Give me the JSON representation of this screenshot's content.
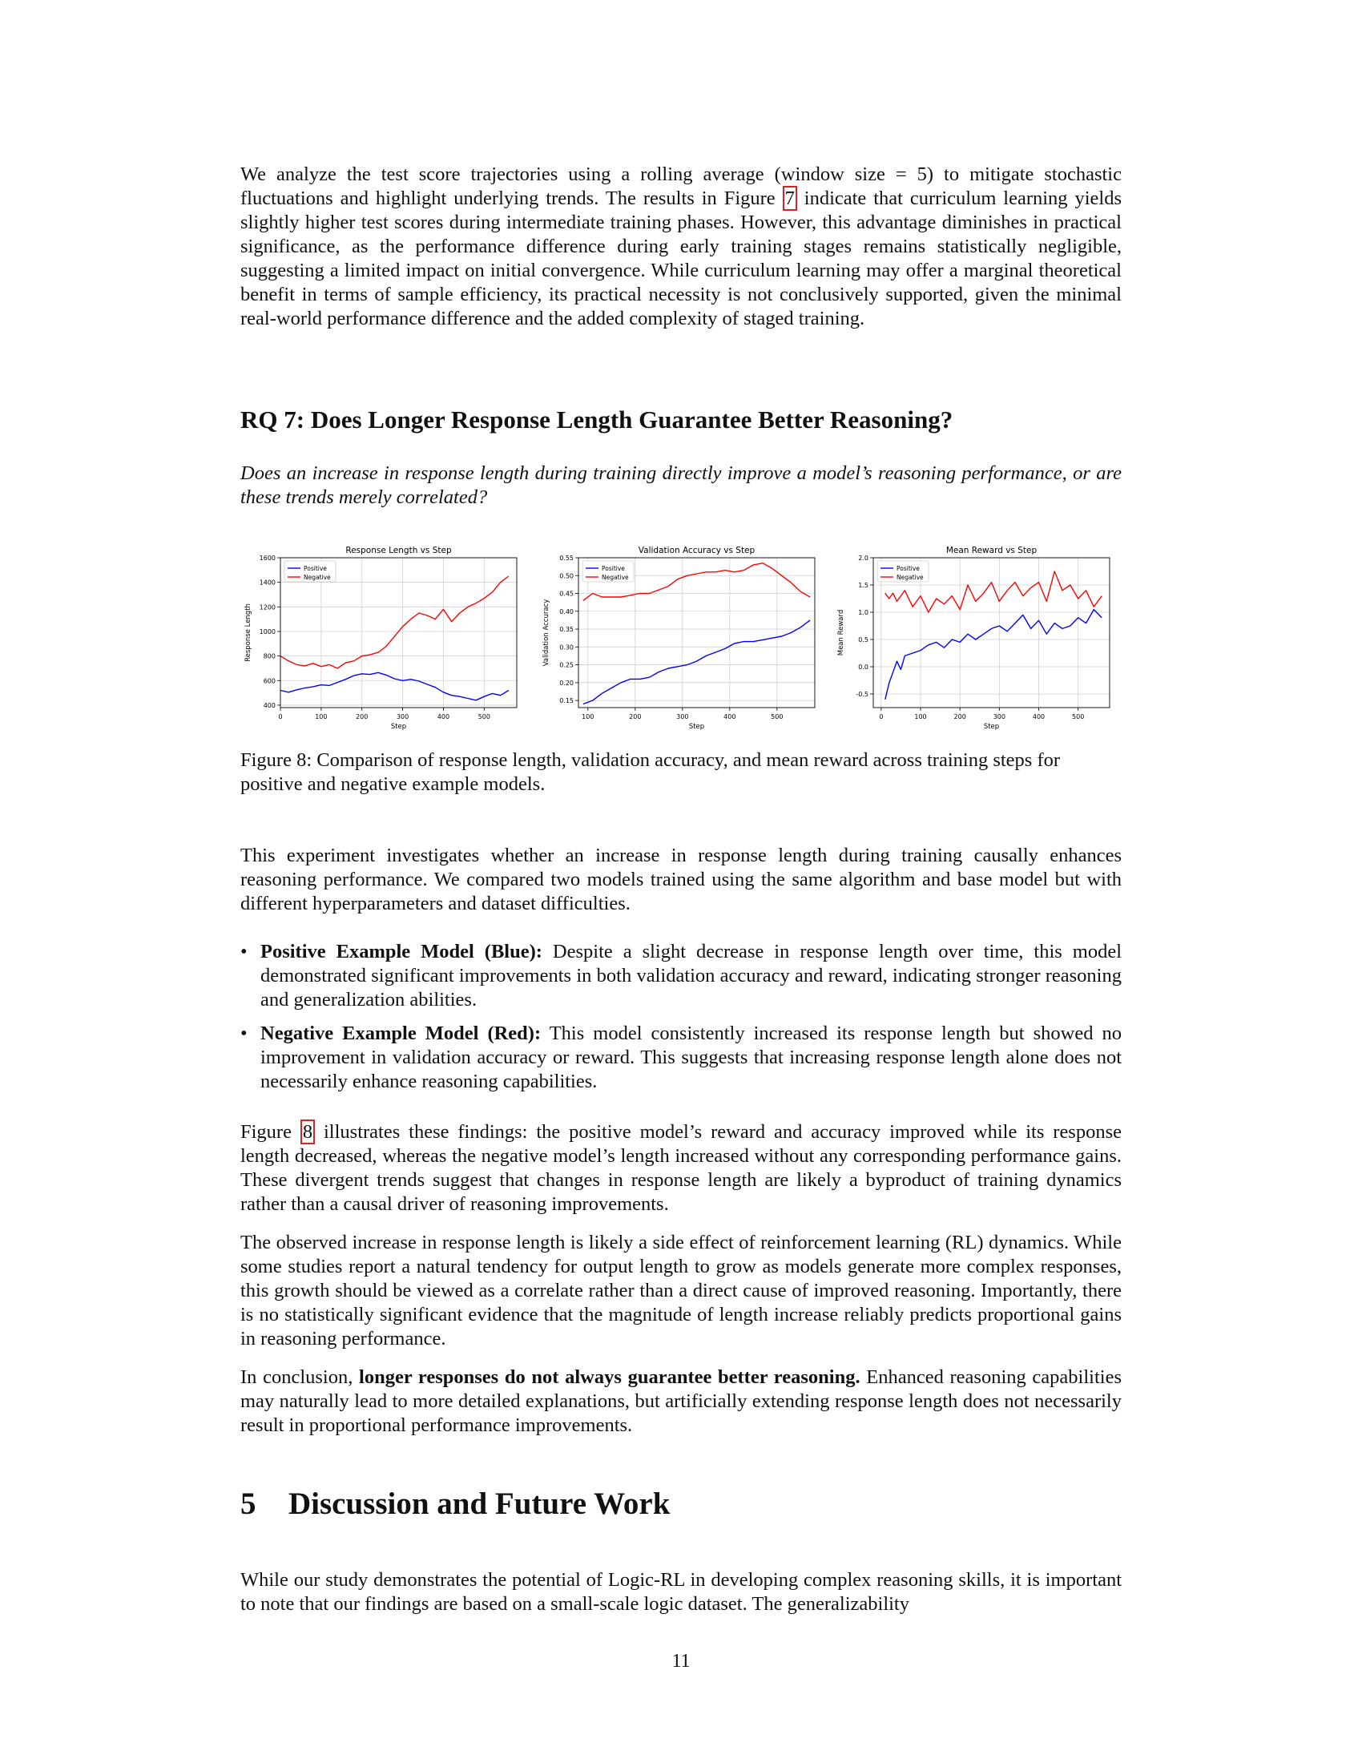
{
  "intro": {
    "paragraph_a": "We analyze the test score trajectories using a rolling average (window size = 5) to mitigate stochastic fluctuations and highlight underlying trends. The results in Figure ",
    "figure_ref": "7",
    "paragraph_b": " indicate that curriculum learning yields slightly higher test scores during intermediate training phases. However, this advantage diminishes in practical significance, as the performance difference during early training stages remains statistically negligible, suggesting a limited impact on initial convergence. While curriculum learning may offer a marginal theoretical benefit in terms of sample efficiency, its practical necessity is not conclusively supported, given the minimal real-world performance difference and the added complexity of staged training."
  },
  "rq7": {
    "heading": "RQ 7: Does Longer Response Length Guarantee Better Reasoning?",
    "question": "Does an increase in response length during training directly improve a model’s reasoning performance, or are these trends merely correlated?"
  },
  "figure8": {
    "caption": "Figure 8: Comparison of response length, validation accuracy, and mean reward across training steps for positive and negative example models."
  },
  "colors": {
    "positive": "#0000ff",
    "negative": "#ff0000",
    "reference_box": "#e02020"
  },
  "chart_data": [
    {
      "type": "line",
      "title": "Response Length vs Step",
      "xlabel": "Step",
      "ylabel": "Response Length",
      "xlim": [
        0,
        580
      ],
      "ylim": [
        380,
        1600
      ],
      "xticks": [
        0,
        100,
        200,
        300,
        400,
        500
      ],
      "yticks": [
        400,
        600,
        800,
        1000,
        1200,
        1400,
        1600
      ],
      "grid": true,
      "legend": "top-left",
      "series": [
        {
          "name": "Positive",
          "color": "#0000ff",
          "x": [
            0,
            20,
            40,
            60,
            80,
            100,
            120,
            140,
            160,
            180,
            200,
            220,
            240,
            260,
            280,
            300,
            320,
            340,
            360,
            380,
            400,
            420,
            440,
            460,
            480,
            500,
            520,
            540,
            560
          ],
          "y": [
            520,
            505,
            525,
            540,
            550,
            565,
            560,
            585,
            610,
            640,
            655,
            650,
            665,
            645,
            615,
            600,
            610,
            595,
            570,
            545,
            505,
            480,
            470,
            455,
            440,
            470,
            495,
            480,
            520
          ]
        },
        {
          "name": "Negative",
          "color": "#ff0000",
          "x": [
            0,
            20,
            40,
            60,
            80,
            100,
            120,
            140,
            160,
            180,
            200,
            220,
            240,
            260,
            280,
            300,
            320,
            340,
            360,
            380,
            400,
            420,
            440,
            460,
            480,
            500,
            520,
            540,
            560
          ],
          "y": [
            800,
            760,
            730,
            720,
            740,
            715,
            730,
            700,
            745,
            760,
            800,
            810,
            830,
            880,
            960,
            1040,
            1100,
            1150,
            1130,
            1100,
            1180,
            1080,
            1150,
            1200,
            1230,
            1270,
            1320,
            1400,
            1450
          ]
        }
      ]
    },
    {
      "type": "line",
      "title": "Validation Accuracy vs Step",
      "xlabel": "Step",
      "ylabel": "Validation Accuracy",
      "xlim": [
        80,
        580
      ],
      "ylim": [
        0.13,
        0.55
      ],
      "xticks": [
        100,
        200,
        300,
        400,
        500
      ],
      "yticks": [
        0.15,
        0.2,
        0.25,
        0.3,
        0.35,
        0.4,
        0.45,
        0.5,
        0.55
      ],
      "grid": true,
      "legend": "top-left",
      "series": [
        {
          "name": "Positive",
          "color": "#0000ff",
          "x": [
            90,
            110,
            130,
            150,
            170,
            190,
            210,
            230,
            250,
            270,
            290,
            310,
            330,
            350,
            370,
            390,
            410,
            430,
            450,
            470,
            490,
            510,
            530,
            550,
            570
          ],
          "y": [
            0.14,
            0.15,
            0.17,
            0.185,
            0.2,
            0.21,
            0.21,
            0.215,
            0.23,
            0.24,
            0.245,
            0.25,
            0.26,
            0.275,
            0.285,
            0.295,
            0.31,
            0.315,
            0.315,
            0.32,
            0.325,
            0.33,
            0.34,
            0.355,
            0.375
          ]
        },
        {
          "name": "Negative",
          "color": "#ff0000",
          "x": [
            90,
            110,
            130,
            150,
            170,
            190,
            210,
            230,
            250,
            270,
            290,
            310,
            330,
            350,
            370,
            390,
            410,
            430,
            450,
            470,
            490,
            510,
            530,
            550,
            570
          ],
          "y": [
            0.43,
            0.45,
            0.44,
            0.44,
            0.44,
            0.445,
            0.45,
            0.45,
            0.46,
            0.47,
            0.49,
            0.5,
            0.505,
            0.51,
            0.51,
            0.515,
            0.51,
            0.515,
            0.53,
            0.535,
            0.52,
            0.5,
            0.48,
            0.455,
            0.44
          ]
        }
      ]
    },
    {
      "type": "line",
      "title": "Mean Reward vs Step",
      "xlabel": "Step",
      "ylabel": "Mean Reward",
      "xlim": [
        -20,
        580
      ],
      "ylim": [
        -0.75,
        2.0
      ],
      "xticks": [
        0,
        100,
        200,
        300,
        400,
        500
      ],
      "yticks": [
        -0.5,
        0.0,
        0.5,
        1.0,
        1.5,
        2.0
      ],
      "grid": true,
      "legend": "top-left",
      "series": [
        {
          "name": "Positive",
          "color": "#0000ff",
          "x": [
            10,
            20,
            30,
            40,
            50,
            60,
            80,
            100,
            120,
            140,
            160,
            180,
            200,
            220,
            240,
            260,
            280,
            300,
            320,
            340,
            360,
            380,
            400,
            420,
            440,
            460,
            480,
            500,
            520,
            540,
            560
          ],
          "y": [
            -0.6,
            -0.3,
            -0.1,
            0.1,
            -0.05,
            0.2,
            0.25,
            0.3,
            0.4,
            0.45,
            0.35,
            0.5,
            0.45,
            0.6,
            0.5,
            0.6,
            0.7,
            0.75,
            0.65,
            0.8,
            0.95,
            0.7,
            0.85,
            0.6,
            0.8,
            0.7,
            0.75,
            0.9,
            0.8,
            1.05,
            0.9
          ]
        },
        {
          "name": "Negative",
          "color": "#ff0000",
          "x": [
            10,
            20,
            30,
            40,
            50,
            60,
            80,
            100,
            120,
            140,
            160,
            180,
            200,
            220,
            240,
            260,
            280,
            300,
            320,
            340,
            360,
            380,
            400,
            420,
            440,
            460,
            480,
            500,
            520,
            540,
            560
          ],
          "y": [
            1.35,
            1.25,
            1.35,
            1.2,
            1.3,
            1.4,
            1.1,
            1.3,
            1.0,
            1.25,
            1.15,
            1.3,
            1.05,
            1.5,
            1.2,
            1.35,
            1.55,
            1.2,
            1.4,
            1.55,
            1.3,
            1.45,
            1.55,
            1.2,
            1.75,
            1.4,
            1.5,
            1.25,
            1.4,
            1.1,
            1.3
          ]
        }
      ]
    }
  ],
  "experiment": {
    "paragraph": "This experiment investigates whether an increase in response length during training causally enhances reasoning performance. We compared two models trained using the same algorithm and base model but with different hyperparameters and dataset difficulties."
  },
  "bullets": [
    {
      "marker": "•",
      "title": "Positive Example Model (Blue):",
      "text": " Despite a slight decrease in response length over time, this model demonstrated significant improvements in both validation accuracy and reward, indicating stronger reasoning and generalization abilities."
    },
    {
      "marker": "•",
      "title": "Negative Example Model (Red):",
      "text": " This model consistently increased its response length but showed no improvement in validation accuracy or reward. This suggests that increasing response length alone does not necessarily enhance reasoning capabilities."
    }
  ],
  "findings": {
    "prefix": "Figure ",
    "figure_ref": "8",
    "text": " illustrates these findings: the positive model’s reward and accuracy improved while its response length decreased, whereas the negative model’s length increased without any corresponding performance gains. These divergent trends suggest that changes in response length are likely a byproduct of training dynamics rather than a causal driver of reasoning improvements."
  },
  "observed": {
    "paragraph": "The observed increase in response length is likely a side effect of reinforcement learning (RL) dynamics. While some studies report a natural tendency for output length to grow as models generate more complex responses, this growth should be viewed as a correlate rather than a direct cause of improved reasoning. Importantly, there is no statistically significant evidence that the magnitude of length increase reliably predicts proportional gains in reasoning performance."
  },
  "conclusion": {
    "lead": "In conclusion, ",
    "bold": "longer responses do not always guarantee better reasoning.",
    "rest": " Enhanced reasoning capabilities may naturally lead to more detailed explanations, but artificially extending response length does not necessarily result in proportional performance improvements."
  },
  "section5": {
    "number": "5",
    "title": "Discussion and Future Work",
    "paragraph": "While our study demonstrates the potential of Logic-RL in developing complex reasoning skills, it is important to note that our findings are based on a small-scale logic dataset. The generalizability"
  },
  "page_number": "11"
}
